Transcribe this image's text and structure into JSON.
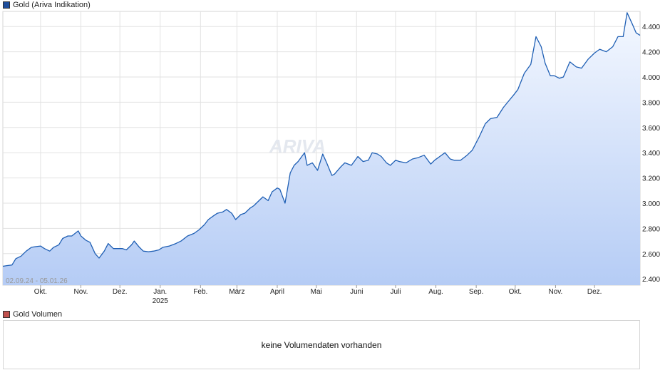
{
  "legend": {
    "price_label": "Gold (Ariva Indikation)",
    "price_color": "#1f4e9c",
    "volume_label": "Gold Volumen",
    "volume_color": "#c0504d"
  },
  "volume_panel": {
    "message": "keine Volumendaten vorhanden"
  },
  "watermark": "ARIVA",
  "chart_data": {
    "type": "area",
    "date_range_label": "02.09.24 - 05.01.26",
    "ylim": [
      2350,
      4520
    ],
    "y_ticks": [
      2400,
      2600,
      2800,
      3000,
      3200,
      3400,
      3600,
      3800,
      4000,
      4200,
      4400
    ],
    "y_tick_labels": [
      "2.400",
      "2.600",
      "2.800",
      "3.000",
      "3.200",
      "3.400",
      "3.600",
      "3.800",
      "4.000",
      "4.200",
      "4.400"
    ],
    "x_ticks": [
      {
        "date": "2024-10-01",
        "label": "Okt."
      },
      {
        "date": "2024-11-01",
        "label": "Nov."
      },
      {
        "date": "2024-12-01",
        "label": "Dez."
      },
      {
        "date": "2025-01-01",
        "label": "Jan.",
        "sublabel": "2025"
      },
      {
        "date": "2025-02-01",
        "label": "Feb."
      },
      {
        "date": "2025-03-01",
        "label": "März"
      },
      {
        "date": "2025-04-01",
        "label": "April"
      },
      {
        "date": "2025-05-01",
        "label": "Mai"
      },
      {
        "date": "2025-06-01",
        "label": "Juni"
      },
      {
        "date": "2025-07-01",
        "label": "Juli"
      },
      {
        "date": "2025-08-01",
        "label": "Aug."
      },
      {
        "date": "2025-09-01",
        "label": "Sep."
      },
      {
        "date": "2025-10-01",
        "label": "Okt."
      },
      {
        "date": "2025-11-01",
        "label": "Nov."
      },
      {
        "date": "2025-12-01",
        "label": "Dez."
      }
    ],
    "grid": true,
    "line_color": "#1f5fb4",
    "fill_top_color": "#f4f8ff",
    "fill_bottom_color": "#b5ccf5",
    "series": [
      {
        "x": [
          "2024-09-02",
          "2024-09-05",
          "2024-09-09",
          "2024-09-12",
          "2024-09-16",
          "2024-09-20",
          "2024-09-24",
          "2024-09-27",
          "2024-10-01",
          "2024-10-04",
          "2024-10-08",
          "2024-10-11",
          "2024-10-15",
          "2024-10-18",
          "2024-10-22",
          "2024-10-25",
          "2024-10-30",
          "2024-11-01",
          "2024-11-05",
          "2024-11-08",
          "2024-11-12",
          "2024-11-15",
          "2024-11-19",
          "2024-11-22",
          "2024-11-26",
          "2024-11-29",
          "2024-12-03",
          "2024-12-06",
          "2024-12-10",
          "2024-12-12",
          "2024-12-16",
          "2024-12-19",
          "2024-12-23",
          "2024-12-27",
          "2024-12-31",
          "2025-01-03",
          "2025-01-08",
          "2025-01-13",
          "2025-01-17",
          "2025-01-22",
          "2025-01-27",
          "2025-01-31",
          "2025-02-04",
          "2025-02-07",
          "2025-02-11",
          "2025-02-14",
          "2025-02-18",
          "2025-02-21",
          "2025-02-25",
          "2025-02-28",
          "2025-03-04",
          "2025-03-07",
          "2025-03-11",
          "2025-03-14",
          "2025-03-18",
          "2025-03-21",
          "2025-03-25",
          "2025-03-28",
          "2025-04-01",
          "2025-04-03",
          "2025-04-07",
          "2025-04-09",
          "2025-04-11",
          "2025-04-14",
          "2025-04-17",
          "2025-04-22",
          "2025-04-24",
          "2025-04-28",
          "2025-05-02",
          "2025-05-06",
          "2025-05-09",
          "2025-05-13",
          "2025-05-15",
          "2025-05-20",
          "2025-05-23",
          "2025-05-28",
          "2025-06-02",
          "2025-06-06",
          "2025-06-10",
          "2025-06-13",
          "2025-06-17",
          "2025-06-20",
          "2025-06-24",
          "2025-06-27",
          "2025-07-01",
          "2025-07-04",
          "2025-07-09",
          "2025-07-14",
          "2025-07-18",
          "2025-07-23",
          "2025-07-28",
          "2025-07-31",
          "2025-08-04",
          "2025-08-08",
          "2025-08-12",
          "2025-08-15",
          "2025-08-20",
          "2025-08-25",
          "2025-08-29",
          "2025-09-03",
          "2025-09-08",
          "2025-09-12",
          "2025-09-17",
          "2025-09-22",
          "2025-09-26",
          "2025-09-30",
          "2025-10-03",
          "2025-10-08",
          "2025-10-13",
          "2025-10-17",
          "2025-10-21",
          "2025-10-24",
          "2025-10-28",
          "2025-10-31",
          "2025-11-04",
          "2025-11-07",
          "2025-11-12",
          "2025-11-17",
          "2025-11-21",
          "2025-11-26",
          "2025-12-01",
          "2025-12-05",
          "2025-12-10",
          "2025-12-15",
          "2025-12-19",
          "2025-12-23",
          "2025-12-26",
          "2025-12-30",
          "2026-01-02",
          "2026-01-05"
        ],
        "values": [
          2500,
          2505,
          2510,
          2560,
          2580,
          2620,
          2650,
          2655,
          2660,
          2640,
          2620,
          2650,
          2670,
          2720,
          2740,
          2740,
          2780,
          2740,
          2705,
          2690,
          2600,
          2565,
          2620,
          2680,
          2640,
          2640,
          2640,
          2630,
          2670,
          2700,
          2650,
          2620,
          2615,
          2620,
          2630,
          2650,
          2660,
          2680,
          2700,
          2740,
          2760,
          2790,
          2830,
          2870,
          2900,
          2920,
          2930,
          2950,
          2920,
          2870,
          2910,
          2920,
          2960,
          2980,
          3020,
          3050,
          3020,
          3090,
          3120,
          3110,
          3000,
          3120,
          3240,
          3300,
          3330,
          3400,
          3300,
          3320,
          3260,
          3390,
          3320,
          3220,
          3230,
          3290,
          3320,
          3300,
          3370,
          3330,
          3340,
          3400,
          3390,
          3370,
          3320,
          3300,
          3340,
          3330,
          3320,
          3350,
          3360,
          3380,
          3310,
          3340,
          3370,
          3400,
          3350,
          3340,
          3340,
          3380,
          3420,
          3520,
          3630,
          3670,
          3680,
          3760,
          3810,
          3860,
          3900,
          4030,
          4100,
          4320,
          4240,
          4110,
          4010,
          4010,
          3990,
          4000,
          4120,
          4080,
          4070,
          4140,
          4190,
          4220,
          4200,
          4240,
          4320,
          4320,
          4510,
          4420,
          4350,
          4330
        ]
      }
    ]
  }
}
